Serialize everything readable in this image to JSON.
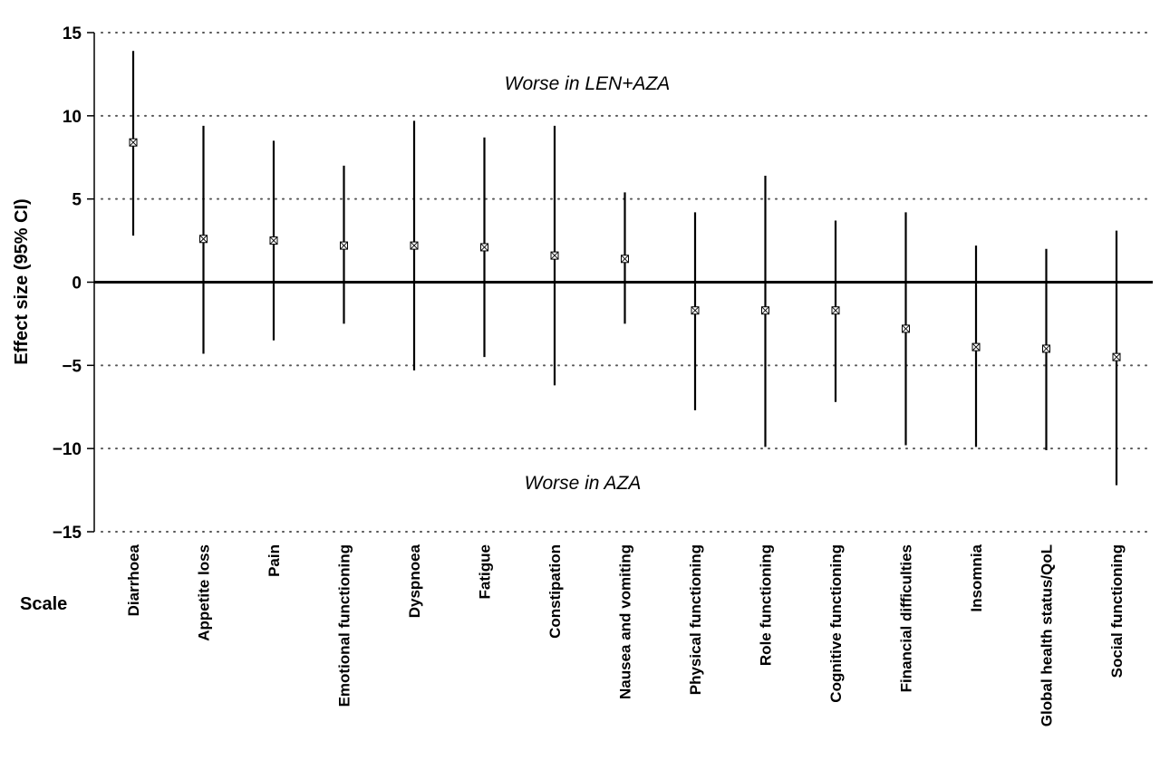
{
  "chart_data": {
    "type": "errorbar",
    "ylabel": "Effect size (95% CI)",
    "xlabel": "Scale",
    "ylim": [
      -15,
      15
    ],
    "yticks": [
      15,
      10,
      5,
      0,
      -5,
      -10,
      -15
    ],
    "ytick_labels": [
      "15",
      "10",
      "5",
      "0",
      "−5",
      "−10",
      "−15"
    ],
    "grid": "horizontal dotted",
    "annotations": {
      "upper": "Worse in LEN+AZA",
      "lower": "Worse in AZA"
    },
    "categories": [
      "Diarrhoea",
      "Appetite loss",
      "Pain",
      "Emotional functioning",
      "Dyspnoea",
      "Fatigue",
      "Constipation",
      "Nausea and vomiting",
      "Physical functioning",
      "Role functioning",
      "Cognitive functioning",
      "Financial difficulties",
      "Insomnia",
      "Global health status/QoL",
      "Social functioning"
    ],
    "estimates": [
      8.4,
      2.6,
      2.5,
      2.2,
      2.2,
      2.1,
      1.6,
      1.4,
      -1.7,
      -1.7,
      -1.7,
      -2.8,
      -3.9,
      -4.0,
      -4.5
    ],
    "ci_lower": [
      2.8,
      -4.3,
      -3.5,
      -2.5,
      -5.3,
      -4.5,
      -6.2,
      -2.5,
      -7.7,
      -9.9,
      -7.2,
      -9.8,
      -9.9,
      -10.1,
      -12.2
    ],
    "ci_upper": [
      13.9,
      9.4,
      8.5,
      7.0,
      9.7,
      8.7,
      9.4,
      5.4,
      4.2,
      6.4,
      3.7,
      4.2,
      2.2,
      2.0,
      3.1
    ]
  }
}
